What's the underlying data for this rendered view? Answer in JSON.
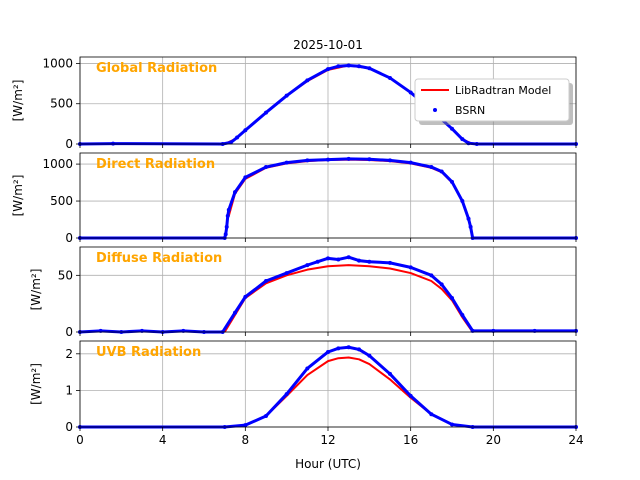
{
  "figure_title": "2025-10-01",
  "xlabel": "Hour (UTC)",
  "y_unit_label": "[W/m²]",
  "x_ticks": [
    "0",
    "4",
    "8",
    "12",
    "16",
    "20",
    "24"
  ],
  "legend": {
    "placement": "upper-right of first panel",
    "entries": [
      {
        "label": "LibRadtran Model",
        "color": "#ff0000",
        "marker": "line"
      },
      {
        "label": "BSRN",
        "color": "#0000ff",
        "marker": "dot"
      }
    ]
  },
  "colors": {
    "model": "#ff0000",
    "bsrn": "#0000ff",
    "panel_label": "#ffa500",
    "grid": "#b0b0b0"
  },
  "chart_data": [
    {
      "type": "line",
      "panel_label": "Global Radiation",
      "ylabel": "[W/m²]",
      "xlim": [
        0,
        24
      ],
      "ylim": [
        0,
        1080
      ],
      "y_ticks": [
        0,
        500,
        1000
      ],
      "grid": true,
      "series": [
        {
          "name": "LibRadtran Model",
          "style": "line",
          "x": [
            7.0,
            7.5,
            8,
            9,
            10,
            11,
            12,
            13,
            14,
            15,
            16,
            17,
            18,
            18.5,
            19.0
          ],
          "y": [
            0,
            60,
            170,
            390,
            600,
            780,
            920,
            975,
            940,
            820,
            640,
            420,
            190,
            60,
            0
          ]
        },
        {
          "name": "BSRN",
          "style": "dots",
          "x": [
            0,
            1.6,
            6.9,
            7.3,
            7.6,
            8,
            9,
            10,
            11,
            12,
            12.5,
            13,
            13.5,
            14,
            15,
            16,
            17,
            18,
            18.5,
            18.8,
            19.2,
            24
          ],
          "y": [
            0,
            5,
            0,
            20,
            80,
            170,
            390,
            600,
            790,
            930,
            965,
            975,
            965,
            940,
            820,
            640,
            420,
            190,
            60,
            10,
            0,
            0
          ]
        }
      ]
    },
    {
      "type": "line",
      "panel_label": "Direct Radiation",
      "ylabel": "[W/m²]",
      "xlim": [
        0,
        24
      ],
      "ylim": [
        0,
        1150
      ],
      "y_ticks": [
        0,
        500,
        1000
      ],
      "grid": true,
      "series": [
        {
          "name": "LibRadtran Model",
          "style": "line",
          "x": [
            7.2,
            7.5,
            8,
            9,
            10,
            11,
            12,
            13,
            14,
            15,
            16,
            17,
            17.5,
            18,
            18.5,
            18.8
          ],
          "y": [
            300,
            600,
            800,
            950,
            1010,
            1040,
            1055,
            1060,
            1055,
            1040,
            1010,
            950,
            890,
            750,
            500,
            250
          ]
        },
        {
          "name": "BSRN",
          "style": "dots",
          "x": [
            0,
            7.0,
            7.05,
            7.1,
            7.15,
            7.2,
            7.5,
            8,
            9,
            10,
            11,
            12,
            13,
            14,
            15,
            16,
            17,
            17.5,
            18,
            18.5,
            18.8,
            18.9,
            19.0,
            24
          ],
          "y": [
            0,
            0,
            50,
            150,
            300,
            380,
            620,
            820,
            960,
            1020,
            1050,
            1060,
            1070,
            1065,
            1050,
            1020,
            960,
            900,
            760,
            500,
            260,
            150,
            0,
            0
          ]
        }
      ]
    },
    {
      "type": "line",
      "panel_label": "Diffuse Radiation",
      "ylabel": "[W/m²]",
      "xlim": [
        0,
        24
      ],
      "ylim": [
        0,
        75
      ],
      "y_ticks": [
        0,
        50
      ],
      "grid": true,
      "series": [
        {
          "name": "LibRadtran Model",
          "style": "line",
          "x": [
            7.0,
            7.5,
            8,
            9,
            10,
            11,
            12,
            13,
            14,
            15,
            16,
            17,
            17.5,
            18,
            18.5,
            19.0
          ],
          "y": [
            0,
            15,
            30,
            43,
            50,
            55,
            58,
            59,
            58,
            56,
            52,
            45,
            38,
            28,
            13,
            0
          ]
        },
        {
          "name": "BSRN",
          "style": "dots",
          "x": [
            0,
            1,
            2,
            3,
            4,
            5,
            6,
            6.9,
            7.5,
            8,
            9,
            10,
            11,
            11.5,
            12,
            12.5,
            13,
            13.5,
            14,
            15,
            16,
            17,
            17.5,
            18,
            18.5,
            19.0,
            20,
            22,
            24
          ],
          "y": [
            0,
            1,
            0,
            1,
            0,
            1,
            0,
            0,
            17,
            31,
            45,
            52,
            59,
            62,
            65,
            64,
            66,
            63,
            62,
            61,
            57,
            50,
            42,
            30,
            15,
            1,
            1,
            1,
            1
          ]
        }
      ]
    },
    {
      "type": "line",
      "panel_label": "UVB Radiation",
      "ylabel": "[W/m²]",
      "xlim": [
        0,
        24
      ],
      "ylim": [
        0,
        2.35
      ],
      "y_ticks": [
        0,
        1,
        2
      ],
      "grid": true,
      "series": [
        {
          "name": "LibRadtran Model",
          "style": "line",
          "x": [
            7.0,
            8,
            9,
            10,
            11,
            12,
            12.5,
            13,
            13.5,
            14,
            15,
            16,
            17,
            18,
            19.0
          ],
          "y": [
            0,
            0.05,
            0.3,
            0.85,
            1.42,
            1.8,
            1.88,
            1.9,
            1.85,
            1.72,
            1.3,
            0.8,
            0.35,
            0.07,
            0
          ]
        },
        {
          "name": "BSRN",
          "style": "dots",
          "x": [
            0,
            7.0,
            8,
            9,
            10,
            11,
            12,
            12.5,
            13,
            13.5,
            14,
            15,
            16,
            17,
            18,
            19.0,
            24
          ],
          "y": [
            0,
            0,
            0.05,
            0.3,
            0.9,
            1.6,
            2.05,
            2.15,
            2.18,
            2.12,
            1.95,
            1.45,
            0.85,
            0.35,
            0.07,
            0,
            0
          ]
        }
      ]
    }
  ]
}
